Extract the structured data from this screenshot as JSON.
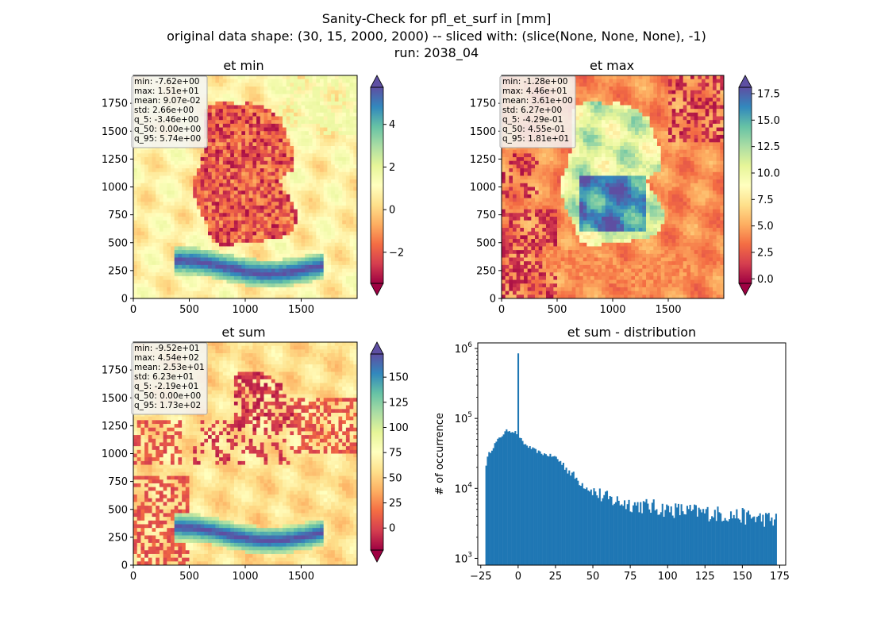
{
  "figure": {
    "title_line1": "Sanity-Check for pfl_et_surf in [mm]",
    "title_line2": "original data shape: (30, 15, 2000, 2000) -- sliced with: (slice(None, None, None), -1)",
    "title_line3": "run: 2038_04"
  },
  "colors": {
    "hist_bar": "#1f77b4",
    "colormap": "Spectral",
    "cmap_stops": [
      "#9e0142",
      "#d53e4f",
      "#f46d43",
      "#fdae61",
      "#fee08b",
      "#ffffbf",
      "#e6f598",
      "#abdda4",
      "#66c2a5",
      "#3288bd",
      "#5e4fa2"
    ]
  },
  "chart_data": [
    {
      "type": "heatmap",
      "title": "et min",
      "x_ticks": [
        "0",
        "500",
        "1000",
        "1500"
      ],
      "y_ticks": [
        "0",
        "250",
        "500",
        "750",
        "1000",
        "1250",
        "1500",
        "1750"
      ],
      "xlim": [
        0,
        2000
      ],
      "ylim": [
        0,
        2000
      ],
      "colorbar": {
        "ticks": [
          "−2",
          "0",
          "2",
          "4"
        ],
        "tick_values": [
          -2,
          0,
          2,
          4
        ],
        "range": [
          -3.46,
          5.74
        ],
        "extend": "both"
      },
      "stats": [
        "min: -7.62e+00",
        "max: 1.51e+01",
        "mean: 9.07e-02",
        "std: 2.66e+00",
        "q_5: -3.46e+00",
        "q_50: 0.00e+00",
        "q_95: 5.74e+00"
      ]
    },
    {
      "type": "heatmap",
      "title": "et max",
      "x_ticks": [
        "0",
        "500",
        "1000",
        "1500"
      ],
      "y_ticks": [
        "0",
        "250",
        "500",
        "750",
        "1000",
        "1250",
        "1500",
        "1750"
      ],
      "xlim": [
        0,
        2000
      ],
      "ylim": [
        0,
        2000
      ],
      "colorbar": {
        "ticks": [
          "0.0",
          "2.5",
          "5.0",
          "7.5",
          "10.0",
          "12.5",
          "15.0",
          "17.5"
        ],
        "tick_values": [
          0,
          2.5,
          5,
          7.5,
          10,
          12.5,
          15,
          17.5
        ],
        "range": [
          -0.429,
          18.1
        ],
        "extend": "both"
      },
      "stats": [
        "min: -1.28e+00",
        "max: 4.46e+01",
        "mean: 3.61e+00",
        "std: 6.27e+00",
        "q_5: -4.29e-01",
        "q_50: 4.55e-01",
        "q_95: 1.81e+01"
      ]
    },
    {
      "type": "heatmap",
      "title": "et sum",
      "x_ticks": [
        "0",
        "500",
        "1000",
        "1500"
      ],
      "y_ticks": [
        "0",
        "250",
        "500",
        "750",
        "1000",
        "1250",
        "1500",
        "1750"
      ],
      "xlim": [
        0,
        2000
      ],
      "ylim": [
        0,
        2000
      ],
      "colorbar": {
        "ticks": [
          "0",
          "25",
          "50",
          "75",
          "100",
          "125",
          "150"
        ],
        "tick_values": [
          0,
          25,
          50,
          75,
          100,
          125,
          150
        ],
        "range": [
          -21.9,
          173
        ],
        "extend": "both"
      },
      "stats": [
        "min: -9.52e+01",
        "max: 4.54e+02",
        "mean: 2.53e+01",
        "std: 6.23e+01",
        "q_5: -2.19e+01",
        "q_50: 0.00e+00",
        "q_95: 1.73e+02"
      ]
    },
    {
      "type": "bar",
      "title": "et sum - distribution",
      "ylabel": "# of occurrence",
      "y_scale": "log",
      "ylim": [
        800,
        1200000
      ],
      "xlim": [
        -27,
        179
      ],
      "x_ticks": [
        "−25",
        "0",
        "25",
        "50",
        "75",
        "100",
        "125",
        "150",
        "175"
      ],
      "x_tick_values": [
        -25,
        0,
        25,
        50,
        75,
        100,
        125,
        150,
        175
      ],
      "y_ticks": [
        {
          "base": "10",
          "exp": "3",
          "value": 1000
        },
        {
          "base": "10",
          "exp": "4",
          "value": 10000
        },
        {
          "base": "10",
          "exp": "5",
          "value": 100000
        },
        {
          "base": "10",
          "exp": "6",
          "value": 1000000
        }
      ],
      "bin_range": [
        -21.9,
        173
      ],
      "bins": 200,
      "spike": {
        "x": 0,
        "count": 850000
      },
      "profile": [
        [
          -21.9,
          20000
        ],
        [
          -20,
          30000
        ],
        [
          -15,
          45000
        ],
        [
          -10,
          60000
        ],
        [
          -7,
          68000
        ],
        [
          -3,
          65000
        ],
        [
          0,
          60000
        ],
        [
          3,
          45000
        ],
        [
          8,
          38000
        ],
        [
          15,
          32000
        ],
        [
          25,
          28000
        ],
        [
          30,
          22000
        ],
        [
          40,
          13000
        ],
        [
          50,
          9000
        ],
        [
          60,
          7000
        ],
        [
          75,
          6000
        ],
        [
          100,
          5000
        ],
        [
          125,
          4500
        ],
        [
          150,
          4000
        ],
        [
          173,
          3500
        ]
      ]
    }
  ]
}
